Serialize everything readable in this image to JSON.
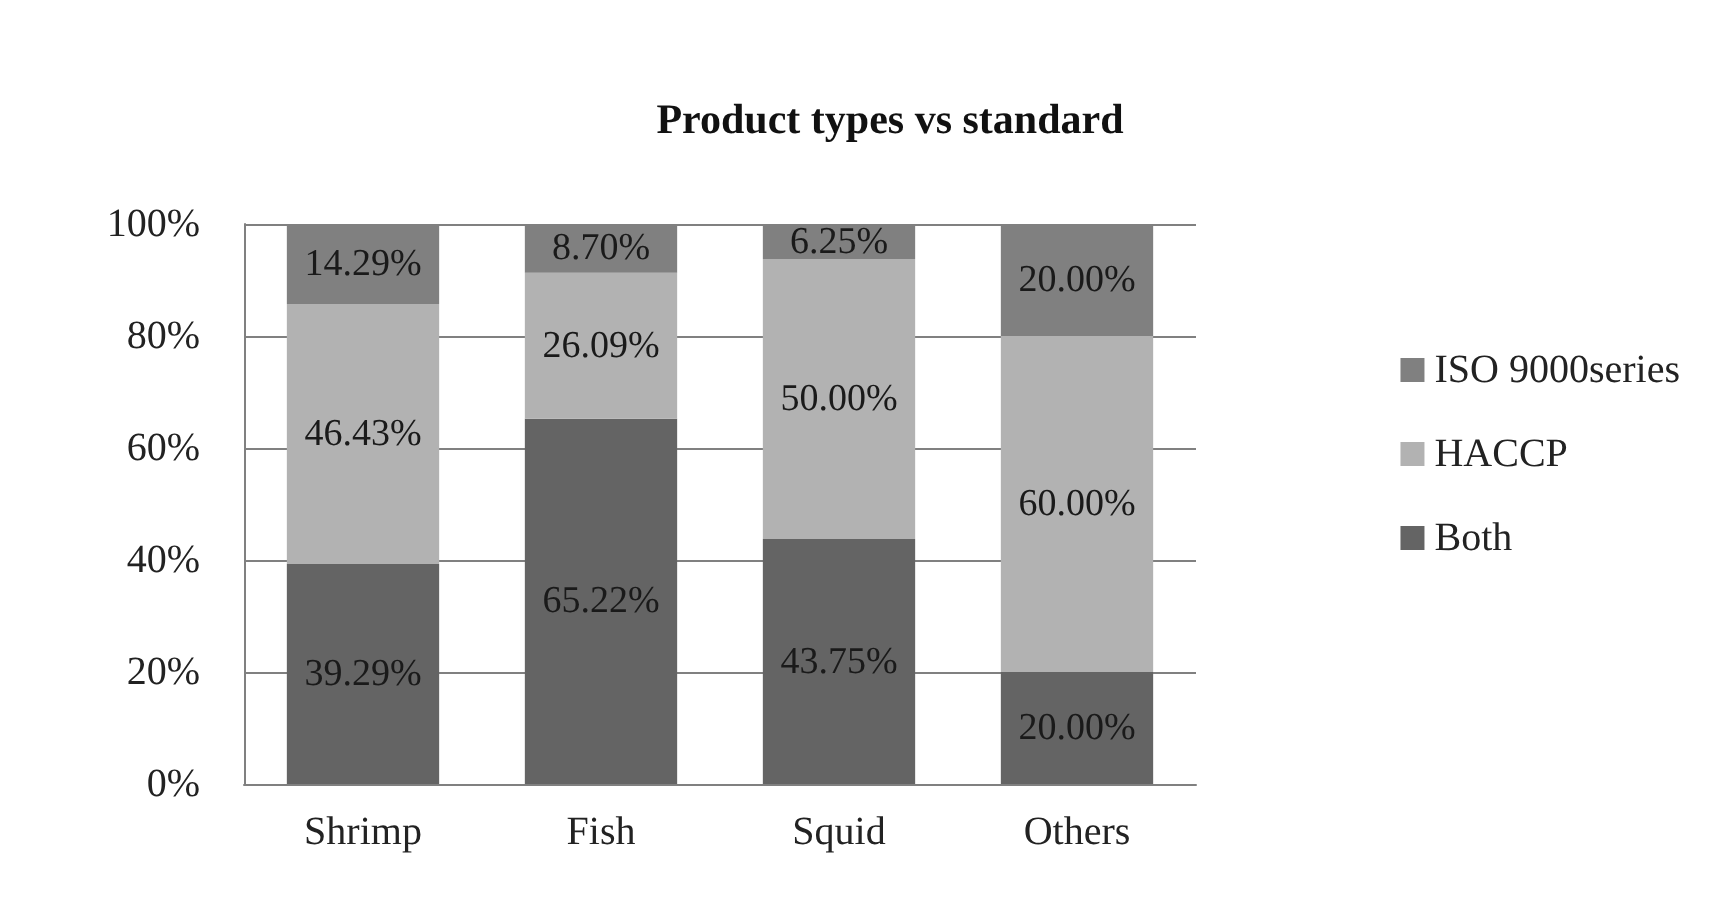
{
  "chart_data": {
    "type": "bar",
    "title": "Product types vs standard",
    "stacked": true,
    "categories": [
      "Shrimp",
      "Fish",
      "Squid",
      "Others"
    ],
    "series": [
      {
        "name": "Both",
        "color": "#646464",
        "values": [
          39.29,
          65.22,
          43.75,
          20.0
        ],
        "value_labels": [
          "39.29%",
          "65.22%",
          "43.75%",
          "20.00%"
        ]
      },
      {
        "name": "HACCP",
        "color": "#b2b2b2",
        "values": [
          46.43,
          26.09,
          50.0,
          60.0
        ],
        "value_labels": [
          "46.43%",
          "26.09%",
          "50.00%",
          "60.00%"
        ]
      },
      {
        "name": "ISO 9000series",
        "color": "#808080",
        "values": [
          14.29,
          8.7,
          6.25,
          20.0
        ],
        "value_labels": [
          "14.29%",
          "8.70%",
          "6.25%",
          "20.00%"
        ]
      }
    ],
    "ylim": [
      0,
      100
    ],
    "yticks": [
      {
        "value": 0,
        "label": "0%"
      },
      {
        "value": 20,
        "label": "20%"
      },
      {
        "value": 40,
        "label": "40%"
      },
      {
        "value": 60,
        "label": "60%"
      },
      {
        "value": 80,
        "label": "80%"
      },
      {
        "value": 100,
        "label": "100%"
      }
    ],
    "grid": "y",
    "legend": "right"
  }
}
